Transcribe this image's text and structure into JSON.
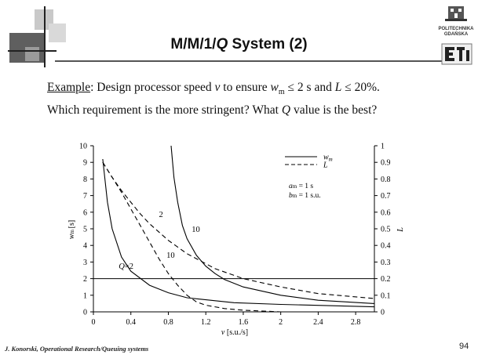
{
  "slide": {
    "title_pre": "M/M/1/",
    "title_q": "Q",
    "title_post": " System (2)",
    "example_label": "Example",
    "text1_rest": ": Design processor speed ",
    "var_v": "v",
    "text1_mid": " to ensure ",
    "var_w": "w",
    "sub_m": "m",
    "text1_cond1": " ≤ 2 s and ",
    "var_L": "L",
    "text1_cond2": " ≤ 20%.",
    "text2_a": "Which requirement is the more stringent? What ",
    "text2_Q": "Q",
    "text2_b": " value is the best?",
    "footer": "J. Konorski, Operational Research/Queuing systems",
    "page_number": "94",
    "logo_line1": "POLITECHNIKA",
    "logo_line2": "GDAŃSKA"
  },
  "colors": {
    "accent_dark": "#555555",
    "accent_light": "#bdbdbd",
    "line": "#000000"
  },
  "chart_data": {
    "type": "line",
    "xlabel_var": "v",
    "xlabel_unit": "[s.u./s]",
    "ylabel_left_var": "w",
    "ylabel_left_sub": "m",
    "ylabel_left_unit": "[s]",
    "ylabel_right": "L",
    "xlim": [
      0,
      3
    ],
    "ylim_left": [
      0,
      10
    ],
    "ylim_right": [
      0,
      1
    ],
    "x_ticks": [
      "0",
      "0.4",
      "0.8",
      "1.2",
      "1.6",
      "2",
      "2.4",
      "2.8"
    ],
    "y_ticks_left": [
      "0",
      "1",
      "2",
      "3",
      "4",
      "5",
      "6",
      "7",
      "8",
      "9",
      "10"
    ],
    "y_ticks_right": [
      "0",
      "0.1",
      "0.2",
      "0.3",
      "0.4",
      "0.5",
      "0.6",
      "0.7",
      "0.8",
      "0.9",
      "1"
    ],
    "reference_line_y": 2,
    "legend": [
      {
        "style": "solid",
        "label_var": "w",
        "label_sub": "m"
      },
      {
        "style": "dashed",
        "label_var": "L",
        "label_sub": ""
      }
    ],
    "params": [
      {
        "var": "a",
        "sub": "m",
        "value": " = 1 s"
      },
      {
        "var": "b",
        "sub": "m",
        "value": " = 1 s.u."
      }
    ],
    "series": [
      {
        "metric": "w_m",
        "Q": 2,
        "axis": "left",
        "style": "solid",
        "x": [
          0.1,
          0.15,
          0.2,
          0.3,
          0.4,
          0.6,
          0.8,
          1.0,
          1.5,
          2.0,
          3.0
        ],
        "y": [
          9.2,
          6.6,
          5.0,
          3.3,
          2.45,
          1.6,
          1.15,
          0.85,
          0.55,
          0.45,
          0.3
        ]
      },
      {
        "metric": "w_m",
        "Q": 10,
        "axis": "left",
        "style": "solid",
        "x": [
          0.83,
          0.86,
          0.9,
          0.95,
          1.0,
          1.1,
          1.2,
          1.3,
          1.4,
          1.6,
          2.0,
          2.4,
          3.0
        ],
        "y": [
          10.0,
          8.1,
          6.6,
          5.2,
          4.4,
          3.4,
          2.75,
          2.3,
          1.95,
          1.5,
          1.0,
          0.7,
          0.5
        ]
      },
      {
        "metric": "L",
        "Q": 2,
        "axis": "right",
        "style": "dashed",
        "x": [
          0.1,
          0.2,
          0.3,
          0.4,
          0.5,
          0.6,
          0.8,
          1.0,
          1.3,
          1.6,
          2.0,
          2.4,
          3.0
        ],
        "y": [
          0.9,
          0.81,
          0.73,
          0.66,
          0.59,
          0.53,
          0.43,
          0.35,
          0.26,
          0.2,
          0.15,
          0.11,
          0.08
        ]
      },
      {
        "metric": "L",
        "Q": 10,
        "axis": "right",
        "style": "dashed",
        "x": [
          0.1,
          0.2,
          0.3,
          0.4,
          0.5,
          0.6,
          0.7,
          0.8,
          0.9,
          1.0,
          1.1,
          1.2,
          1.4,
          1.6,
          2.0
        ],
        "y": [
          0.9,
          0.81,
          0.72,
          0.62,
          0.52,
          0.42,
          0.32,
          0.23,
          0.16,
          0.1,
          0.06,
          0.04,
          0.02,
          0.01,
          0.0
        ]
      }
    ],
    "curve_labels": [
      {
        "text": "2",
        "x": 0.7,
        "y": 5.7
      },
      {
        "text": "10",
        "x": 1.05,
        "y": 4.8
      },
      {
        "text": "Q",
        "x": 0.27,
        "y": 2.6,
        "italic": true,
        "suffix": "=2"
      },
      {
        "text": "10",
        "x": 0.78,
        "y": 3.25
      }
    ]
  }
}
